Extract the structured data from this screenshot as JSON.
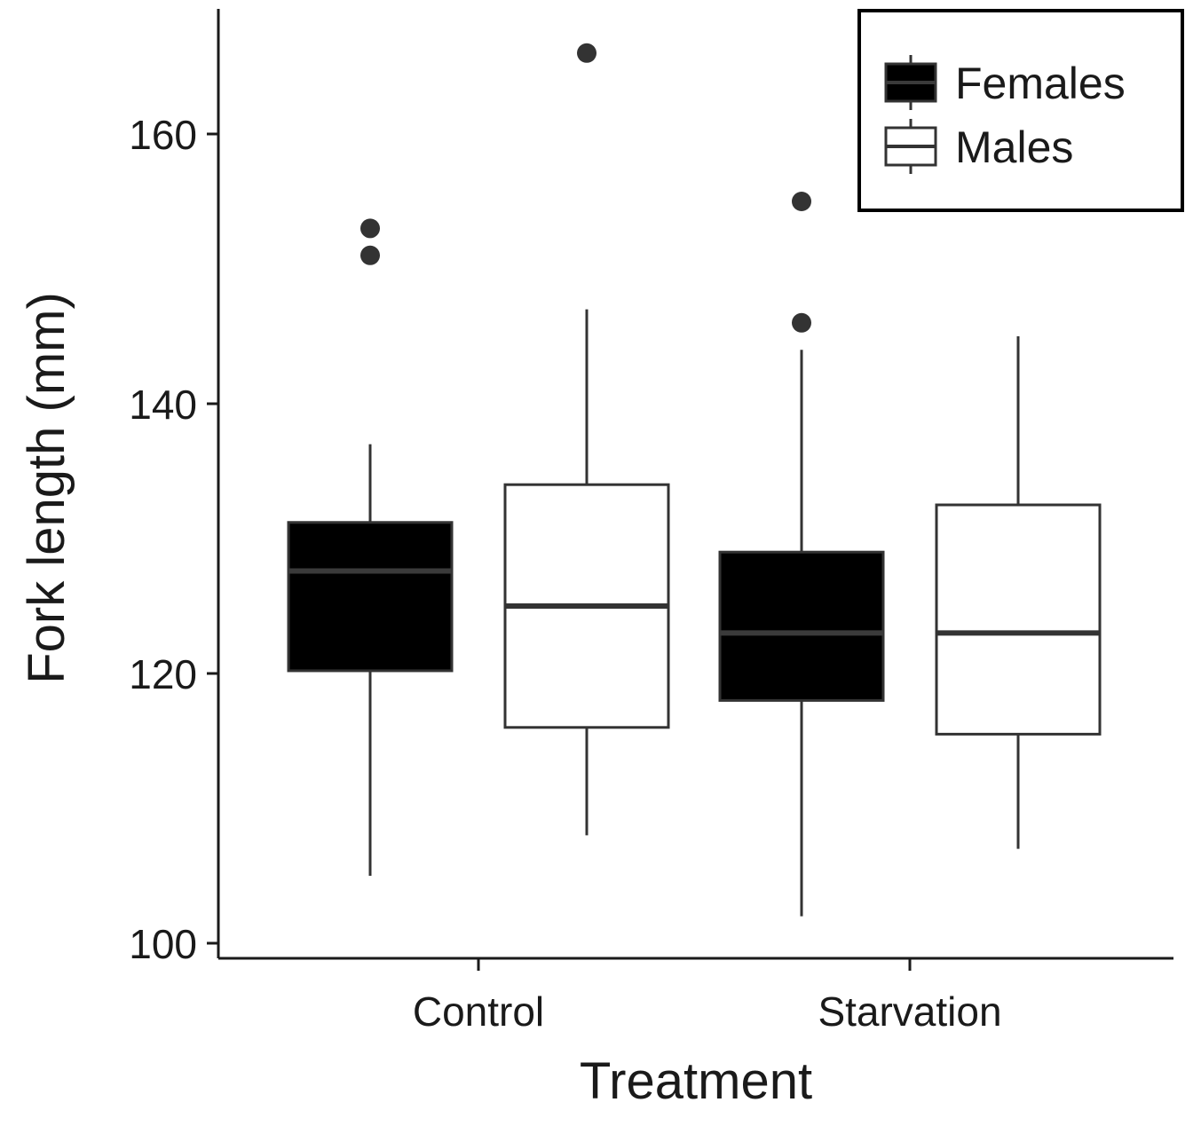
{
  "chart_data": {
    "type": "boxplot",
    "title": "",
    "xlabel": "Treatment",
    "ylabel": "Fork length (mm)",
    "ylim": [
      99,
      169
    ],
    "yticks": [
      100,
      120,
      140,
      160
    ],
    "categories": [
      "Control",
      "Starvation"
    ],
    "legend_position": "top-right",
    "series": [
      {
        "name": "Females",
        "fill": "#000000",
        "edge": "#333333",
        "median_color": "#3a3a3a",
        "boxes": [
          {
            "category": "Control",
            "whisker_low": 105,
            "q1": 120.2,
            "median": 127.6,
            "q3": 131.2,
            "whisker_high": 137,
            "outliers": [
              153,
              151
            ]
          },
          {
            "category": "Starvation",
            "whisker_low": 102,
            "q1": 118,
            "median": 123,
            "q3": 129,
            "whisker_high": 144,
            "outliers": [
              155,
              146
            ]
          }
        ]
      },
      {
        "name": "Males",
        "fill": "#ffffff",
        "edge": "#333333",
        "median_color": "#333333",
        "boxes": [
          {
            "category": "Control",
            "whisker_low": 108,
            "q1": 116,
            "median": 125,
            "q3": 134,
            "whisker_high": 147,
            "outliers": [
              166
            ]
          },
          {
            "category": "Starvation",
            "whisker_low": 107,
            "q1": 115.5,
            "median": 123,
            "q3": 132.5,
            "whisker_high": 145,
            "outliers": []
          }
        ]
      }
    ]
  }
}
